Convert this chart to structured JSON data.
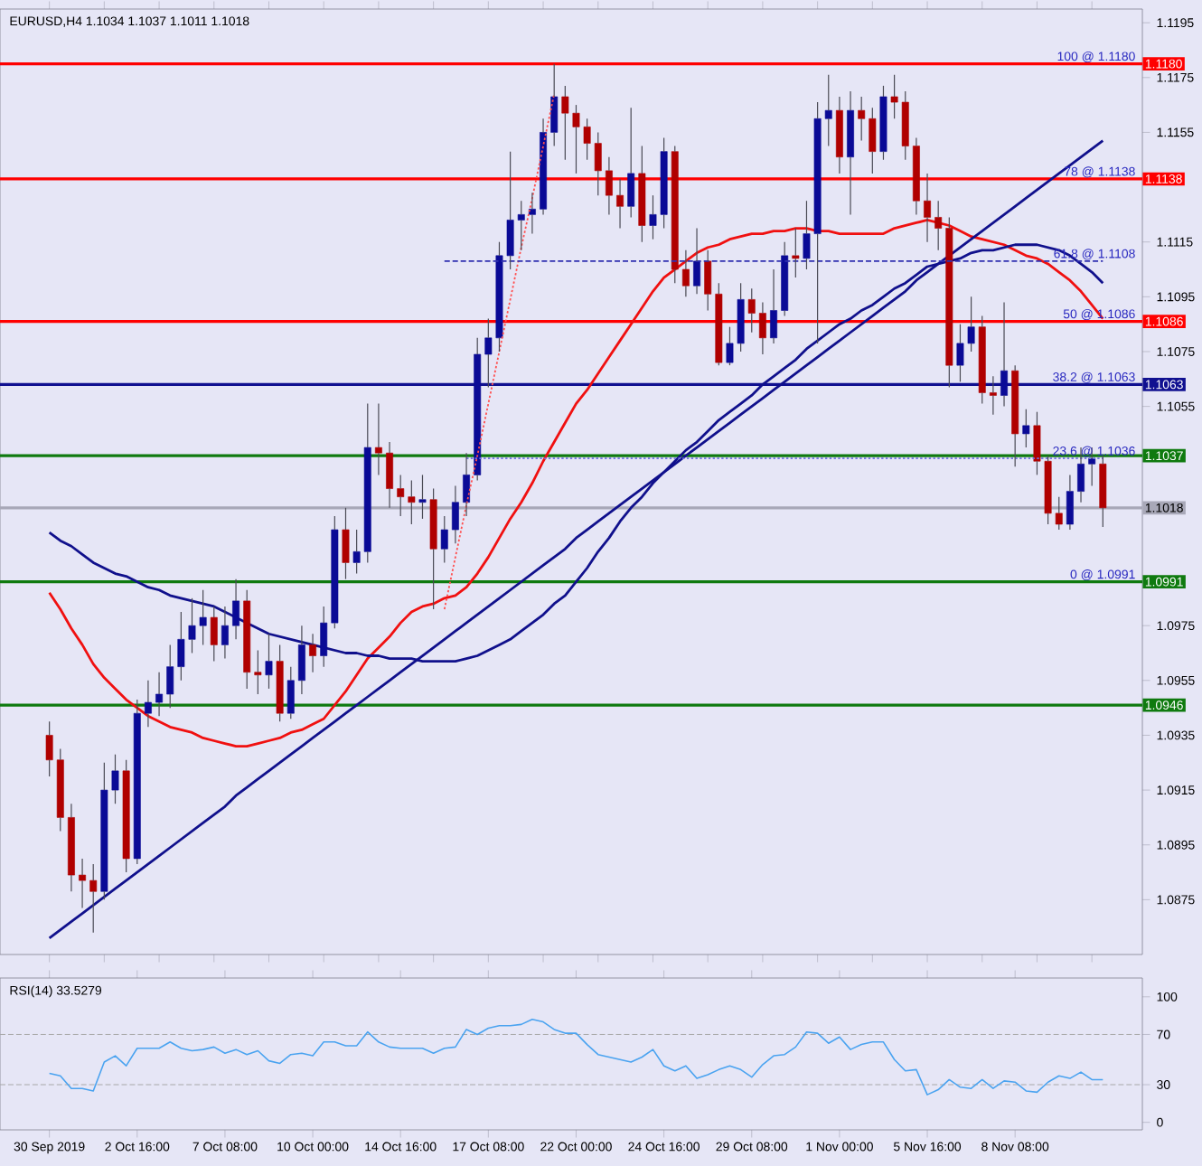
{
  "chart_data": [
    {
      "type": "candlestick",
      "title": "EURUSD,H4  1.1034 1.1037 1.1011 1.1018",
      "tick_labels": "y",
      "categories": [
        null,
        null,
        null,
        null,
        null,
        null,
        null,
        null,
        null,
        null,
        null,
        null,
        null,
        null,
        null,
        null,
        null,
        null,
        null,
        null,
        null,
        null,
        null,
        null,
        null,
        null,
        null,
        null,
        null,
        null,
        null,
        null,
        null,
        null,
        null,
        null,
        null,
        null,
        null,
        null,
        null,
        null,
        null,
        null,
        null,
        null,
        null,
        null,
        null,
        null,
        null,
        null,
        null,
        null,
        null,
        null,
        null,
        null,
        null,
        null,
        null,
        null,
        null,
        null,
        null,
        null,
        null,
        null,
        null,
        null,
        null,
        null,
        null,
        null,
        null,
        null,
        null,
        null,
        null,
        null,
        null,
        null,
        null,
        null,
        null,
        null,
        null,
        null,
        null,
        null,
        null,
        null,
        null,
        null,
        null,
        null,
        null
      ],
      "ohlc": [
        [
          1.0935,
          1.094,
          1.092,
          1.0926
        ],
        [
          1.0926,
          1.093,
          1.09,
          1.0905
        ],
        [
          1.0905,
          1.091,
          1.0878,
          1.0884
        ],
        [
          1.0884,
          1.089,
          1.0872,
          1.0882
        ],
        [
          1.0882,
          1.0888,
          1.0863,
          1.0878
        ],
        [
          1.0878,
          1.0925,
          1.0875,
          1.0915
        ],
        [
          1.0915,
          1.0928,
          1.091,
          1.0922
        ],
        [
          1.0922,
          1.0926,
          1.0885,
          1.089
        ],
        [
          1.089,
          1.0948,
          1.0888,
          1.0943
        ],
        [
          1.0943,
          1.0955,
          1.0938,
          1.0947
        ],
        [
          1.0947,
          1.0958,
          1.0942,
          1.095
        ],
        [
          1.095,
          1.0968,
          1.0945,
          1.096
        ],
        [
          1.096,
          1.098,
          1.0955,
          1.097
        ],
        [
          1.097,
          1.0985,
          1.0965,
          1.0975
        ],
        [
          1.0975,
          1.0988,
          1.0968,
          1.0978
        ],
        [
          1.0978,
          1.0982,
          1.0962,
          1.0968
        ],
        [
          1.0968,
          1.0982,
          1.0963,
          1.0975
        ],
        [
          1.0975,
          1.0992,
          1.097,
          1.0984
        ],
        [
          1.0984,
          1.0988,
          1.0952,
          1.0958
        ],
        [
          1.0958,
          1.0966,
          1.095,
          1.0957
        ],
        [
          1.0957,
          1.0972,
          1.0952,
          1.0962
        ],
        [
          1.0962,
          1.0968,
          1.094,
          1.0943
        ],
        [
          1.0943,
          1.096,
          1.0941,
          1.0955
        ],
        [
          1.0955,
          1.0975,
          1.095,
          1.0968
        ],
        [
          1.0968,
          1.0972,
          1.0958,
          1.0964
        ],
        [
          1.0964,
          1.0982,
          1.096,
          1.0976
        ],
        [
          1.0976,
          1.1015,
          1.0974,
          1.101
        ],
        [
          1.101,
          1.1018,
          1.0992,
          1.0998
        ],
        [
          1.0998,
          1.101,
          1.0994,
          1.1002
        ],
        [
          1.1002,
          1.1056,
          1.0998,
          1.104
        ],
        [
          1.104,
          1.1056,
          1.103,
          1.1038
        ],
        [
          1.1038,
          1.1042,
          1.1018,
          1.1025
        ],
        [
          1.1025,
          1.103,
          1.1015,
          1.1022
        ],
        [
          1.1022,
          1.1028,
          1.1012,
          1.102
        ],
        [
          1.102,
          1.103,
          1.1014,
          1.1021
        ],
        [
          1.1021,
          1.1025,
          1.0981,
          1.1003
        ],
        [
          1.1003,
          1.1015,
          1.0998,
          1.101
        ],
        [
          1.101,
          1.1026,
          1.1005,
          1.102
        ],
        [
          1.102,
          1.1038,
          1.1015,
          1.103
        ],
        [
          1.103,
          1.108,
          1.1028,
          1.1074
        ],
        [
          1.1074,
          1.1087,
          1.1062,
          1.108
        ],
        [
          1.108,
          1.1115,
          1.1075,
          1.111
        ],
        [
          1.111,
          1.1148,
          1.1105,
          1.1123
        ],
        [
          1.1123,
          1.113,
          1.1112,
          1.1125
        ],
        [
          1.1125,
          1.1133,
          1.1118,
          1.1127
        ],
        [
          1.1127,
          1.116,
          1.1125,
          1.1155
        ],
        [
          1.1155,
          1.118,
          1.115,
          1.1168
        ],
        [
          1.1168,
          1.1172,
          1.1145,
          1.1162
        ],
        [
          1.1162,
          1.1165,
          1.114,
          1.1157
        ],
        [
          1.1157,
          1.116,
          1.1145,
          1.1151
        ],
        [
          1.1151,
          1.1155,
          1.1132,
          1.1141
        ],
        [
          1.1141,
          1.1146,
          1.1125,
          1.1132
        ],
        [
          1.1132,
          1.1138,
          1.112,
          1.1128
        ],
        [
          1.1128,
          1.1164,
          1.1124,
          1.114
        ],
        [
          1.114,
          1.115,
          1.1115,
          1.1121
        ],
        [
          1.1121,
          1.1132,
          1.1116,
          1.1125
        ],
        [
          1.1125,
          1.1153,
          1.112,
          1.1148
        ],
        [
          1.1148,
          1.115,
          1.11,
          1.1105
        ],
        [
          1.1105,
          1.1112,
          1.1095,
          1.1099
        ],
        [
          1.1099,
          1.112,
          1.1096,
          1.1108
        ],
        [
          1.1108,
          1.1112,
          1.109,
          1.1096
        ],
        [
          1.1096,
          1.11,
          1.107,
          1.1071
        ],
        [
          1.1071,
          1.1084,
          1.107,
          1.1078
        ],
        [
          1.1078,
          1.11,
          1.1075,
          1.1094
        ],
        [
          1.1094,
          1.1098,
          1.1082,
          1.1089
        ],
        [
          1.1089,
          1.1093,
          1.1074,
          1.108
        ],
        [
          1.108,
          1.1105,
          1.1078,
          1.109
        ],
        [
          1.109,
          1.1115,
          1.1088,
          1.111
        ],
        [
          1.111,
          1.112,
          1.1102,
          1.1109
        ],
        [
          1.1109,
          1.113,
          1.1105,
          1.1118
        ],
        [
          1.1118,
          1.1166,
          1.1078,
          1.116
        ],
        [
          1.116,
          1.1176,
          1.115,
          1.1163
        ],
        [
          1.1163,
          1.1168,
          1.114,
          1.1146
        ],
        [
          1.1146,
          1.117,
          1.1125,
          1.1163
        ],
        [
          1.1163,
          1.1168,
          1.1152,
          1.116
        ],
        [
          1.116,
          1.1164,
          1.114,
          1.1148
        ],
        [
          1.1148,
          1.1172,
          1.1145,
          1.1168
        ],
        [
          1.1168,
          1.1176,
          1.116,
          1.1166
        ],
        [
          1.1166,
          1.117,
          1.1145,
          1.115
        ],
        [
          1.115,
          1.1153,
          1.1125,
          1.113
        ],
        [
          1.113,
          1.114,
          1.1115,
          1.1124
        ],
        [
          1.1124,
          1.113,
          1.1112,
          1.112
        ],
        [
          1.112,
          1.1124,
          1.1062,
          1.107
        ],
        [
          1.107,
          1.1085,
          1.1064,
          1.1078
        ],
        [
          1.1078,
          1.1095,
          1.1075,
          1.1084
        ],
        [
          1.1084,
          1.1088,
          1.1056,
          1.106
        ],
        [
          1.106,
          1.1066,
          1.1052,
          1.1059
        ],
        [
          1.1059,
          1.1093,
          1.1055,
          1.1068
        ],
        [
          1.1068,
          1.107,
          1.1033,
          1.1045
        ],
        [
          1.1045,
          1.1054,
          1.104,
          1.1048
        ],
        [
          1.1048,
          1.1053,
          1.103,
          1.1035
        ],
        [
          1.1035,
          1.1037,
          1.1012,
          1.1016
        ],
        [
          1.1016,
          1.1022,
          1.101,
          1.1012
        ],
        [
          1.1012,
          1.103,
          1.101,
          1.1024
        ],
        [
          1.1024,
          1.104,
          1.102,
          1.1034
        ],
        [
          1.1034,
          1.104,
          1.1026,
          1.1036
        ],
        [
          1.1034,
          1.1037,
          1.1011,
          1.1018
        ]
      ],
      "colors": [
        "#b00000",
        "#b00000",
        "#b00000",
        "#b00000",
        "#b00000",
        "#0a0a96",
        "#0a0a96",
        "#b00000",
        "#0a0a96",
        "#0a0a96",
        "#0a0a96",
        "#0a0a96",
        "#0a0a96",
        "#0a0a96",
        "#0a0a96",
        "#b00000",
        "#0a0a96",
        "#0a0a96",
        "#b00000",
        "#b00000",
        "#0a0a96",
        "#b00000",
        "#0a0a96",
        "#0a0a96",
        "#b00000",
        "#0a0a96",
        "#0a0a96",
        "#b00000",
        "#0a0a96",
        "#0a0a96",
        "#b00000",
        "#b00000",
        "#b00000",
        "#b00000",
        "#0a0a96",
        "#b00000",
        "#0a0a96",
        "#0a0a96",
        "#0a0a96",
        "#0a0a96",
        "#0a0a96",
        "#0a0a96",
        "#0a0a96",
        "#0a0a96",
        "#0a0a96",
        "#0a0a96",
        "#0a0a96",
        "#b00000",
        "#b00000",
        "#b00000",
        "#b00000",
        "#b00000",
        "#b00000",
        "#0a0a96",
        "#b00000",
        "#0a0a96",
        "#0a0a96",
        "#b00000",
        "#b00000",
        "#0a0a96",
        "#b00000",
        "#b00000",
        "#0a0a96",
        "#0a0a96",
        "#b00000",
        "#b00000",
        "#0a0a96",
        "#0a0a96",
        "#b00000",
        "#0a0a96",
        "#0a0a96",
        "#0a0a96",
        "#b00000",
        "#0a0a96",
        "#b00000",
        "#b00000",
        "#0a0a96",
        "#b00000",
        "#b00000",
        "#b00000",
        "#b00000",
        "#b00000",
        "#b00000",
        "#0a0a96",
        "#0a0a96",
        "#b00000",
        "#b00000",
        "#0a0a96",
        "#b00000",
        "#0a0a96",
        "#b00000",
        "#b00000",
        "#b00000",
        "#0a0a96",
        "#0a0a96",
        "#0a0a96",
        "#b00000"
      ],
      "series": [
        {
          "type": "line",
          "color": "#f01010",
          "values": [
            1.0987,
            1.0981,
            1.0974,
            1.0968,
            1.0961,
            1.0956,
            1.0952,
            1.0948,
            1.0945,
            1.0942,
            1.094,
            1.0938,
            1.0937,
            1.0936,
            1.0934,
            1.0933,
            1.0932,
            1.0931,
            1.0931,
            1.0932,
            1.0933,
            1.0934,
            1.0936,
            1.0937,
            1.0939,
            1.0941,
            1.0946,
            1.0951,
            1.0957,
            1.0963,
            1.0967,
            1.0971,
            1.0976,
            1.098,
            1.0982,
            1.0983,
            1.0985,
            1.0986,
            1.0989,
            1.0994,
            1.1,
            1.1007,
            1.1014,
            1.102,
            1.1027,
            1.1035,
            1.1042,
            1.1049,
            1.1056,
            1.1061,
            1.1067,
            1.1073,
            1.1079,
            1.1085,
            1.1091,
            1.1097,
            1.1102,
            1.1105,
            1.1108,
            1.1111,
            1.1113,
            1.1114,
            1.1116,
            1.1117,
            1.1118,
            1.1118,
            1.1119,
            1.1119,
            1.112,
            1.112,
            1.1119,
            1.1119,
            1.1118,
            1.1118,
            1.1118,
            1.1118,
            1.1118,
            1.112,
            1.1121,
            1.1122,
            1.1123,
            1.1122,
            1.1121,
            1.1119,
            1.1117,
            1.1116,
            1.1115,
            1.1114,
            1.1112,
            1.111,
            1.1109,
            1.1107,
            1.1104,
            1.1101,
            1.1097,
            1.1092,
            1.1087
          ]
        },
        {
          "type": "line",
          "color": "#10108c",
          "values": [
            1.1009,
            1.1006,
            1.1004,
            1.1001,
            1.0998,
            1.0996,
            1.0994,
            1.0993,
            1.0991,
            1.0989,
            1.0988,
            1.0986,
            1.0985,
            1.0984,
            1.0983,
            1.0982,
            1.098,
            1.0978,
            1.0976,
            1.0974,
            1.0972,
            1.0971,
            1.097,
            1.0969,
            1.0968,
            1.0967,
            1.0966,
            1.0965,
            1.0965,
            1.0964,
            1.0964,
            1.0963,
            1.0963,
            1.0963,
            1.0962,
            1.0962,
            1.0962,
            1.0962,
            1.0963,
            1.0964,
            1.0966,
            1.0968,
            1.097,
            1.0973,
            1.0976,
            1.0979,
            1.0983,
            1.0986,
            1.0991,
            1.0996,
            1.1002,
            1.1007,
            1.1013,
            1.1018,
            1.1022,
            1.1027,
            1.1031,
            1.1035,
            1.1039,
            1.1042,
            1.1046,
            1.105,
            1.1053,
            1.1056,
            1.1059,
            1.1063,
            1.1066,
            1.1069,
            1.1072,
            1.1076,
            1.1079,
            1.1082,
            1.1085,
            1.1087,
            1.109,
            1.1092,
            1.1095,
            1.1098,
            1.11,
            1.1103,
            1.1106,
            1.1107,
            1.1108,
            1.1109,
            1.1111,
            1.1112,
            1.1112,
            1.1113,
            1.1114,
            1.1114,
            1.1114,
            1.1113,
            1.1112,
            1.111,
            1.1107,
            1.1104,
            1.11
          ]
        },
        {
          "type": "line",
          "color": "#10108c",
          "values": [
            1.0861,
            1.0864,
            1.0867,
            1.087,
            1.0873,
            1.0876,
            1.0879,
            1.0882,
            1.0885,
            1.0888,
            1.0891,
            1.0894,
            1.0897,
            1.09,
            1.0903,
            1.0906,
            1.0909,
            1.0913,
            1.0916,
            1.0919,
            1.0922,
            1.0925,
            1.0928,
            1.0931,
            1.0934,
            1.0937,
            1.094,
            1.0943,
            1.0946,
            1.0949,
            1.0952,
            1.0955,
            1.0958,
            1.0961,
            1.0964,
            1.0967,
            1.097,
            1.0973,
            1.0976,
            1.0979,
            1.0982,
            1.0985,
            1.0988,
            1.0991,
            1.0994,
            1.0997,
            1.1,
            1.1003,
            1.1007,
            1.101,
            1.1013,
            1.1016,
            1.1019,
            1.1022,
            1.1025,
            1.1028,
            1.1031,
            1.1034,
            1.1037,
            1.104,
            1.1043,
            1.1046,
            1.1049,
            1.1052,
            1.1055,
            1.1058,
            1.1061,
            1.1064,
            1.1067,
            1.107,
            1.1073,
            1.1076,
            1.1079,
            1.1082,
            1.1085,
            1.1088,
            1.1091,
            1.1094,
            1.1097,
            1.1101,
            1.1104,
            1.1107,
            1.111,
            1.1113,
            1.1116,
            1.1119,
            1.1122,
            1.1125,
            1.1128,
            1.1131,
            1.1134,
            1.1137,
            1.114,
            1.1143,
            1.1146,
            1.1149,
            1.1152
          ]
        },
        {
          "type": "line",
          "color": "#ff5050",
          "line_style": "dotted",
          "values": [
            null,
            null,
            null,
            null,
            null,
            null,
            null,
            null,
            null,
            null,
            null,
            null,
            null,
            null,
            null,
            null,
            null,
            null,
            null,
            null,
            null,
            null,
            null,
            null,
            null,
            null,
            null,
            null,
            null,
            null,
            null,
            null,
            null,
            null,
            null,
            null,
            1.0981,
            1.1,
            1.1019,
            1.1037,
            1.1056,
            1.1075,
            1.1094,
            1.1113,
            1.1131,
            1.115,
            1.1169,
            null,
            null,
            null,
            null,
            null,
            null,
            null,
            null,
            null,
            null,
            null,
            null,
            null,
            null,
            null,
            null,
            null,
            null,
            null,
            null,
            null,
            null,
            null,
            null,
            null,
            null,
            null,
            null,
            null,
            null,
            null,
            null,
            null,
            null,
            null,
            null,
            null,
            null,
            null,
            null,
            null,
            null,
            null,
            null,
            null,
            null,
            null,
            null,
            null,
            null
          ]
        },
        {
          "type": "line",
          "color": "#3030b0",
          "line_style": "dashed",
          "values": [
            null,
            null,
            null,
            null,
            null,
            null,
            null,
            null,
            null,
            null,
            null,
            null,
            null,
            null,
            null,
            null,
            null,
            null,
            null,
            null,
            null,
            null,
            null,
            null,
            null,
            null,
            null,
            null,
            null,
            null,
            null,
            null,
            null,
            null,
            null,
            null,
            1.1108,
            1.1108,
            1.1108,
            1.1108,
            1.1108,
            1.1108,
            1.1108,
            1.1108,
            1.1108,
            1.1108,
            1.1108,
            1.1108,
            1.1108,
            1.1108,
            1.1108,
            1.1108,
            1.1108,
            1.1108,
            1.1108,
            1.1108,
            1.1108,
            1.1108,
            1.1108,
            1.1108,
            1.1108,
            1.1108,
            1.1108,
            1.1108,
            1.1108,
            1.1108,
            1.1108,
            1.1108,
            1.1108,
            1.1108,
            1.1108,
            1.1108,
            1.1108,
            1.1108,
            1.1108,
            1.1108,
            1.1108,
            1.1108,
            1.1108,
            1.1108,
            1.1108,
            1.1108,
            1.1108,
            1.1108,
            1.1108,
            1.1108,
            1.1108,
            1.1108,
            1.1108,
            1.1108,
            1.1108,
            1.1108,
            1.1108,
            1.1108,
            1.1108,
            1.1108,
            1.1108
          ]
        },
        {
          "type": "line",
          "color": "#7070e0",
          "line_style": "dotted",
          "values": [
            null,
            null,
            null,
            null,
            null,
            null,
            null,
            null,
            null,
            null,
            null,
            null,
            null,
            null,
            null,
            null,
            null,
            null,
            null,
            null,
            null,
            null,
            null,
            null,
            null,
            null,
            null,
            null,
            null,
            null,
            null,
            null,
            null,
            null,
            null,
            null,
            null,
            null,
            1.1036,
            1.1036,
            1.1036,
            1.1036,
            1.1036,
            1.1036,
            1.1036,
            1.1036,
            1.1036,
            1.1036,
            1.1036,
            1.1036,
            1.1036,
            1.1036,
            1.1036,
            1.1036,
            1.1036,
            1.1036,
            1.1036,
            1.1036,
            1.1036,
            1.1036,
            1.1036,
            1.1036,
            1.1036,
            1.1036,
            1.1036,
            1.1036,
            1.1036,
            1.1036,
            1.1036,
            1.1036,
            1.1036,
            1.1036,
            1.1036,
            1.1036,
            1.1036,
            1.1036,
            1.1036,
            1.1036,
            1.1036,
            1.1036,
            1.1036,
            1.1036,
            1.1036,
            1.1036,
            1.1036,
            1.1036,
            1.1036,
            1.1036,
            1.1036,
            1.1036,
            1.1036,
            1.1036,
            1.1036,
            1.1036,
            1.1036,
            1.1036,
            1.1036
          ]
        }
      ],
      "ylim": [
        1.0855,
        1.12
      ],
      "yticks": [
        1.1195,
        1.1175,
        1.1155,
        1.1115,
        1.1095,
        1.1075,
        1.1055,
        1.0975,
        1.0955,
        1.0935,
        1.0915,
        1.0895,
        1.0875
      ],
      "ref_lines": [
        {
          "axis": "y",
          "value": 1.118,
          "label": "1.1180",
          "color": "#ff0000"
        },
        {
          "axis": "y",
          "value": 1.1138,
          "label": "1.1138",
          "color": "#ff0000"
        },
        {
          "axis": "y",
          "value": 1.1086,
          "label": "1.1086",
          "color": "#ff0000"
        },
        {
          "axis": "y",
          "value": 1.1063,
          "label": "1.1063",
          "color": "#101090"
        },
        {
          "axis": "y",
          "value": 1.1037,
          "label": "1.1037",
          "color": "#0f7a0f"
        },
        {
          "axis": "y",
          "value": 1.1018,
          "label": "1.1018",
          "color": "#a8a8b8"
        },
        {
          "axis": "y",
          "value": 1.0991,
          "label": "1.0991",
          "color": "#0f7a0f"
        },
        {
          "axis": "y",
          "value": 1.0946,
          "label": "1.0946",
          "color": "#0f7a0f"
        }
      ],
      "annotations": [
        {
          "text": "100 @ 1.1180",
          "y": 1.118
        },
        {
          "text": "78 @ 1.1138",
          "y": 1.1138
        },
        {
          "text": "61.8 @ 1.1108",
          "y": 1.1108
        },
        {
          "text": "50 @ 1.1086",
          "y": 1.1086
        },
        {
          "text": "38.2 @ 1.1063",
          "y": 1.1063
        },
        {
          "text": "23.6 @ 1.1036",
          "y": 1.1036
        },
        {
          "text": "0 @ 1.0991",
          "y": 1.0991
        }
      ]
    },
    {
      "type": "line",
      "title": "RSI(14) 33.5279",
      "categories": [
        "30 Sep 2019",
        null,
        null,
        null,
        null,
        null,
        null,
        null,
        "2 Oct 16:00",
        null,
        null,
        null,
        null,
        null,
        null,
        null,
        "7 Oct 08:00",
        null,
        null,
        null,
        null,
        null,
        null,
        null,
        "10 Oct 00:00",
        null,
        null,
        null,
        null,
        null,
        null,
        null,
        "14 Oct 16:00",
        null,
        null,
        null,
        null,
        null,
        null,
        null,
        "17 Oct 08:00",
        null,
        null,
        null,
        null,
        null,
        null,
        null,
        "22 Oct 00:00",
        null,
        null,
        null,
        null,
        null,
        null,
        null,
        "24 Oct 16:00",
        null,
        null,
        null,
        null,
        null,
        null,
        null,
        "29 Oct 08:00",
        null,
        null,
        null,
        null,
        null,
        null,
        null,
        "1 Nov 00:00",
        null,
        null,
        null,
        null,
        null,
        null,
        null,
        "5 Nov 16:00",
        null,
        null,
        null,
        null,
        null,
        null,
        null,
        "8 Nov 08:00",
        null,
        null,
        null,
        null,
        null,
        null,
        null,
        null
      ],
      "series": [
        {
          "color": "#4aa3f0",
          "values": [
            39,
            37,
            27,
            27,
            25,
            48,
            53,
            45,
            59,
            59,
            59,
            64,
            59,
            57,
            58,
            60,
            55,
            58,
            54,
            57,
            49,
            47,
            54,
            55,
            53,
            64,
            64,
            61,
            61,
            72,
            64,
            60,
            59,
            59,
            59,
            55,
            59,
            60,
            74,
            70,
            75,
            77,
            77,
            78,
            82,
            80,
            74,
            71,
            71,
            62,
            54,
            52,
            50,
            48,
            52,
            58,
            45,
            41,
            45,
            35,
            38,
            42,
            45,
            42,
            36,
            46,
            53,
            54,
            60,
            72,
            71,
            63,
            68,
            58,
            62,
            64,
            64,
            50,
            41,
            42,
            22,
            26,
            34,
            28,
            27,
            34,
            27,
            33,
            32,
            25,
            24,
            32,
            37,
            35,
            40,
            34,
            34
          ]
        }
      ],
      "ylim": [
        -6,
        115
      ],
      "yticks": [
        0,
        30,
        70,
        100
      ],
      "ref_lines": [
        {
          "axis": "y",
          "value": 30,
          "color": "#a8a8a8",
          "line_style": "dashed"
        },
        {
          "axis": "y",
          "value": 70,
          "color": "#a8a8a8",
          "line_style": "dashed"
        }
      ]
    }
  ]
}
